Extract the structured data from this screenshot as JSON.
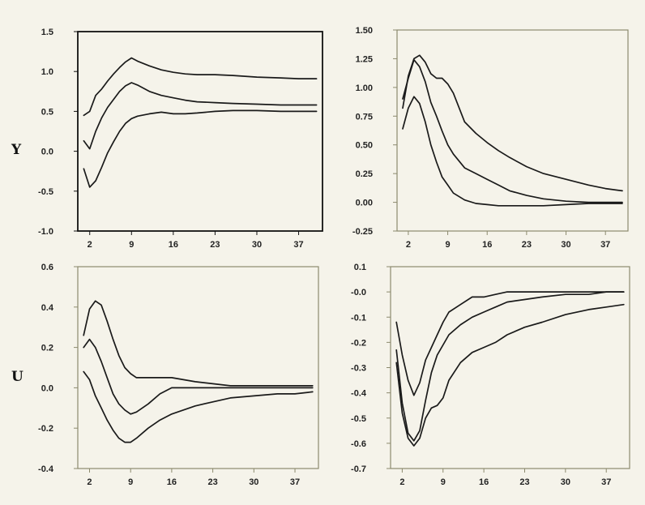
{
  "row_labels": [
    "Y",
    "U"
  ],
  "chart_data": [
    {
      "type": "line",
      "title": "",
      "xlabel": "",
      "ylabel": "Y",
      "xlim": [
        0,
        41
      ],
      "ylim": [
        -1.0,
        1.5
      ],
      "xticks": [
        2,
        9,
        16,
        23,
        30,
        37
      ],
      "xtick_labels": [
        "2",
        "9",
        "16",
        "23",
        "30",
        "37"
      ],
      "yticks": [
        -1.0,
        -0.5,
        0.0,
        0.5,
        1.0,
        1.5
      ],
      "ytick_labels": [
        "-1.0",
        "-0.5",
        "0.0",
        "0.5",
        "1.0",
        "1.5"
      ],
      "frame_color": "#111111",
      "series": [
        {
          "x": [
            1,
            2,
            3,
            4,
            5,
            6,
            7,
            8,
            9,
            10,
            12,
            14,
            16,
            18,
            20,
            23,
            26,
            30,
            34,
            37,
            40
          ],
          "y": [
            0.45,
            0.5,
            0.7,
            0.78,
            0.88,
            0.97,
            1.05,
            1.12,
            1.17,
            1.13,
            1.07,
            1.02,
            0.99,
            0.97,
            0.96,
            0.96,
            0.95,
            0.93,
            0.92,
            0.91,
            0.91
          ]
        },
        {
          "x": [
            1,
            2,
            3,
            4,
            5,
            6,
            7,
            8,
            9,
            10,
            12,
            14,
            16,
            18,
            20,
            23,
            26,
            30,
            34,
            37,
            40
          ],
          "y": [
            0.13,
            0.03,
            0.25,
            0.42,
            0.55,
            0.65,
            0.75,
            0.82,
            0.86,
            0.83,
            0.75,
            0.7,
            0.67,
            0.64,
            0.62,
            0.61,
            0.6,
            0.59,
            0.58,
            0.58,
            0.58
          ]
        },
        {
          "x": [
            1,
            2,
            3,
            4,
            5,
            6,
            7,
            8,
            9,
            10,
            12,
            14,
            16,
            18,
            20,
            23,
            26,
            30,
            34,
            37,
            40
          ],
          "y": [
            -0.22,
            -0.45,
            -0.37,
            -0.2,
            -0.02,
            0.12,
            0.25,
            0.35,
            0.41,
            0.44,
            0.47,
            0.49,
            0.47,
            0.47,
            0.48,
            0.5,
            0.51,
            0.51,
            0.5,
            0.5,
            0.5
          ]
        }
      ]
    },
    {
      "type": "line",
      "title": "",
      "xlabel": "",
      "ylabel": "",
      "xlim": [
        0,
        41
      ],
      "ylim": [
        -0.25,
        1.5
      ],
      "xticks": [
        2,
        9,
        16,
        23,
        30,
        37
      ],
      "xtick_labels": [
        "2",
        "9",
        "16",
        "23",
        "30",
        "37"
      ],
      "yticks": [
        -0.25,
        0.0,
        0.25,
        0.5,
        0.75,
        1.0,
        1.25,
        1.5
      ],
      "ytick_labels": [
        "-0.25",
        "0.00",
        "0.25",
        "0.50",
        "0.75",
        "1.00",
        "1.25",
        "1.50"
      ],
      "frame_color": "#8c8a6e",
      "series": [
        {
          "x": [
            1,
            2,
            3,
            4,
            5,
            6,
            7,
            8,
            9,
            10,
            12,
            14,
            16,
            18,
            20,
            23,
            26,
            30,
            34,
            37,
            40
          ],
          "y": [
            0.82,
            1.1,
            1.25,
            1.28,
            1.22,
            1.12,
            1.08,
            1.08,
            1.03,
            0.95,
            0.7,
            0.6,
            0.52,
            0.45,
            0.39,
            0.31,
            0.25,
            0.2,
            0.15,
            0.12,
            0.1
          ]
        },
        {
          "x": [
            1,
            2,
            3,
            4,
            5,
            6,
            7,
            8,
            9,
            10,
            12,
            14,
            16,
            18,
            20,
            23,
            26,
            30,
            34,
            37,
            40
          ],
          "y": [
            0.9,
            1.08,
            1.24,
            1.18,
            1.05,
            0.87,
            0.75,
            0.62,
            0.5,
            0.42,
            0.3,
            0.25,
            0.2,
            0.15,
            0.1,
            0.06,
            0.03,
            0.01,
            0.0,
            0.0,
            0.0
          ]
        },
        {
          "x": [
            1,
            2,
            3,
            4,
            5,
            6,
            7,
            8,
            9,
            10,
            12,
            14,
            16,
            18,
            20,
            23,
            26,
            30,
            34,
            37,
            40
          ],
          "y": [
            0.64,
            0.82,
            0.92,
            0.86,
            0.7,
            0.5,
            0.35,
            0.22,
            0.15,
            0.08,
            0.02,
            -0.01,
            -0.02,
            -0.03,
            -0.03,
            -0.03,
            -0.03,
            -0.02,
            -0.01,
            -0.01,
            -0.01
          ]
        }
      ]
    },
    {
      "type": "line",
      "title": "",
      "xlabel": "",
      "ylabel": "U",
      "xlim": [
        0,
        41
      ],
      "ylim": [
        -0.4,
        0.6
      ],
      "xticks": [
        2,
        9,
        16,
        23,
        30,
        37
      ],
      "xtick_labels": [
        "2",
        "9",
        "16",
        "23",
        "30",
        "37"
      ],
      "yticks": [
        -0.4,
        -0.2,
        0.0,
        0.2,
        0.4,
        0.6
      ],
      "ytick_labels": [
        "-0.4",
        "-0.2",
        "0.0",
        "0.2",
        "0.4",
        "0.6"
      ],
      "frame_color": "#8c8a6e",
      "series": [
        {
          "x": [
            1,
            2,
            3,
            4,
            5,
            6,
            7,
            8,
            9,
            10,
            12,
            14,
            16,
            18,
            20,
            23,
            26,
            30,
            34,
            37,
            40
          ],
          "y": [
            0.26,
            0.39,
            0.43,
            0.41,
            0.33,
            0.24,
            0.16,
            0.1,
            0.07,
            0.05,
            0.05,
            0.05,
            0.05,
            0.04,
            0.03,
            0.02,
            0.01,
            0.01,
            0.01,
            0.01,
            0.01
          ]
        },
        {
          "x": [
            1,
            2,
            3,
            4,
            5,
            6,
            7,
            8,
            9,
            10,
            12,
            14,
            16,
            18,
            20,
            23,
            26,
            30,
            34,
            37,
            40
          ],
          "y": [
            0.2,
            0.24,
            0.2,
            0.13,
            0.05,
            -0.03,
            -0.08,
            -0.11,
            -0.13,
            -0.12,
            -0.08,
            -0.03,
            0.0,
            0.0,
            0.0,
            0.0,
            0.0,
            0.0,
            0.0,
            0.0,
            0.0
          ]
        },
        {
          "x": [
            1,
            2,
            3,
            4,
            5,
            6,
            7,
            8,
            9,
            10,
            12,
            14,
            16,
            18,
            20,
            23,
            26,
            30,
            34,
            37,
            40
          ],
          "y": [
            0.08,
            0.04,
            -0.04,
            -0.1,
            -0.16,
            -0.21,
            -0.25,
            -0.27,
            -0.27,
            -0.25,
            -0.2,
            -0.16,
            -0.13,
            -0.11,
            -0.09,
            -0.07,
            -0.05,
            -0.04,
            -0.03,
            -0.03,
            -0.02
          ]
        }
      ]
    },
    {
      "type": "line",
      "title": "",
      "xlabel": "",
      "ylabel": "",
      "xlim": [
        0,
        41
      ],
      "ylim": [
        -0.7,
        0.1
      ],
      "xticks": [
        2,
        9,
        16,
        23,
        30,
        37
      ],
      "xtick_labels": [
        "2",
        "9",
        "16",
        "23",
        "30",
        "37"
      ],
      "yticks": [
        -0.7,
        -0.6,
        -0.5,
        -0.4,
        -0.3,
        -0.2,
        -0.1,
        0.0,
        0.1
      ],
      "ytick_labels": [
        "-0.7",
        "-0.6",
        "-0.5",
        "-0.4",
        "-0.3",
        "-0.2",
        "-0.1",
        "-0.0",
        "0.1"
      ],
      "frame_color": "#8c8a6e",
      "series": [
        {
          "x": [
            1,
            2,
            3,
            4,
            5,
            6,
            7,
            8,
            9,
            10,
            12,
            14,
            16,
            18,
            20,
            23,
            26,
            30,
            34,
            37,
            40
          ],
          "y": [
            -0.12,
            -0.25,
            -0.35,
            -0.41,
            -0.36,
            -0.27,
            -0.22,
            -0.17,
            -0.12,
            -0.08,
            -0.05,
            -0.02,
            -0.02,
            -0.01,
            0.0,
            0.0,
            0.0,
            0.0,
            0.0,
            0.0,
            0.0
          ]
        },
        {
          "x": [
            1,
            2,
            3,
            4,
            5,
            6,
            7,
            8,
            9,
            10,
            12,
            14,
            16,
            18,
            20,
            23,
            26,
            30,
            34,
            37,
            40
          ],
          "y": [
            -0.23,
            -0.44,
            -0.56,
            -0.59,
            -0.55,
            -0.43,
            -0.32,
            -0.25,
            -0.21,
            -0.17,
            -0.13,
            -0.1,
            -0.08,
            -0.06,
            -0.04,
            -0.03,
            -0.02,
            -0.01,
            -0.01,
            0.0,
            0.0
          ]
        },
        {
          "x": [
            1,
            2,
            3,
            4,
            5,
            6,
            7,
            8,
            9,
            10,
            12,
            14,
            16,
            18,
            20,
            23,
            26,
            30,
            34,
            37,
            40
          ],
          "y": [
            -0.28,
            -0.48,
            -0.58,
            -0.61,
            -0.58,
            -0.5,
            -0.46,
            -0.45,
            -0.42,
            -0.35,
            -0.28,
            -0.24,
            -0.22,
            -0.2,
            -0.17,
            -0.14,
            -0.12,
            -0.09,
            -0.07,
            -0.06,
            -0.05
          ]
        }
      ]
    }
  ]
}
